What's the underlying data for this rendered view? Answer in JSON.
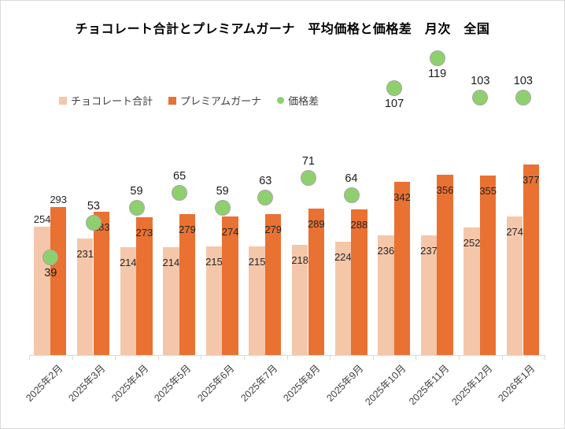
{
  "title": "チョコレート合計とプレミアムガーナ　平均価格と価格差　月次　全国",
  "colors": {
    "chocolate_total": "#F5C7AA",
    "premium_ghana": "#E97132",
    "price_diff": "#8FD06E",
    "price_diff_border": "#A6A6A6",
    "axis": "#D9D9D9"
  },
  "chart_data": {
    "type": "bar",
    "title": "チョコレート合計とプレミアムガーナ　平均価格と価格差　月次　全国",
    "categories": [
      "2025年2月",
      "2025年3月",
      "2025年4月",
      "2025年5月",
      "2025年6月",
      "2025年7月",
      "2025年8月",
      "2025年9月",
      "2025年10月",
      "2025年11月",
      "2025年12月",
      "2026年1月"
    ],
    "series": [
      {
        "name": "チョコレート合計",
        "type": "bar",
        "axis": "primary",
        "color": "#F5C7AA",
        "values": [
          254,
          231,
          214,
          214,
          215,
          215,
          218,
          224,
          236,
          237,
          252,
          274
        ]
      },
      {
        "name": "プレミアムガーナ",
        "type": "bar",
        "axis": "primary",
        "color": "#E97132",
        "values": [
          293,
          283,
          273,
          279,
          274,
          279,
          289,
          288,
          342,
          356,
          355,
          377
        ]
      },
      {
        "name": "価格差",
        "type": "scatter",
        "axis": "secondary",
        "color": "#8FD06E",
        "values": [
          39,
          53,
          59,
          65,
          59,
          63,
          71,
          64,
          107,
          119,
          103,
          103
        ]
      }
    ],
    "primary_axis": {
      "min": 0,
      "max": 400,
      "visible": false
    },
    "secondary_axis": {
      "min": 0,
      "max": 125,
      "visible": false
    },
    "gridlines": false,
    "data_labels": true,
    "legend_position": "top-left",
    "xlabel": "",
    "ylabel": "",
    "label_hints": {
      "bar_labels_outside_at_index": 0,
      "diff_labels_below_indices": [
        0,
        8,
        9
      ]
    }
  }
}
